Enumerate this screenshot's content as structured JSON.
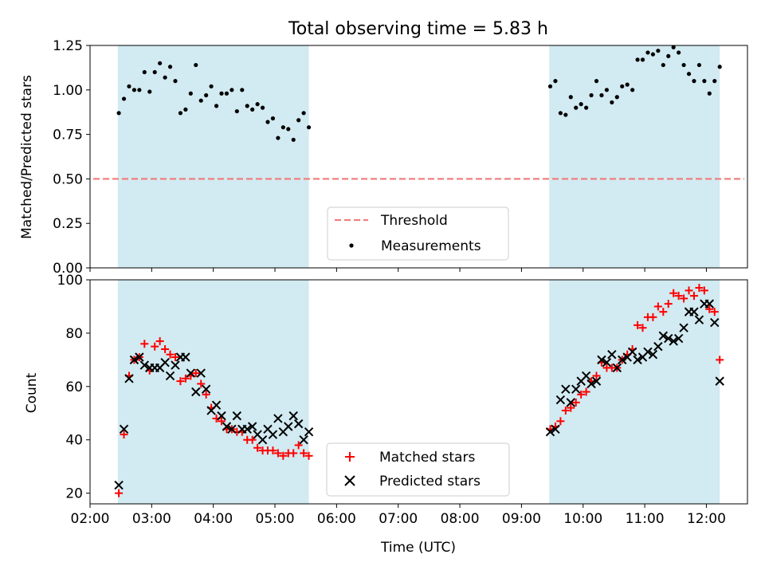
{
  "chart_data": [
    {
      "type": "scatter",
      "title": "Total observing time = 5.83 h",
      "xlabel": "",
      "ylabel": "Matched/Predicted stars",
      "xlim": [
        "02:00",
        "12:40"
      ],
      "ylim": [
        0,
        1.25
      ],
      "y_ticks": [
        "0.00",
        "0.25",
        "0.50",
        "0.75",
        "1.00",
        "1.25"
      ],
      "shaded_intervals": [
        [
          "02:27",
          "05:33"
        ],
        [
          "09:27",
          "12:13"
        ]
      ],
      "threshold": 0.5,
      "legend_position": "lower center",
      "legend": {
        "threshold_label": "Threshold",
        "measurements_label": "Measurements"
      },
      "series": [
        {
          "name": "Measurements",
          "marker": "dot",
          "color": "#000000",
          "points": [
            [
              "02:28",
              0.87
            ],
            [
              "02:33",
              0.95
            ],
            [
              "02:38",
              1.02
            ],
            [
              "02:43",
              1.0
            ],
            [
              "02:48",
              1.0
            ],
            [
              "02:53",
              1.1
            ],
            [
              "02:58",
              0.99
            ],
            [
              "03:03",
              1.1
            ],
            [
              "03:08",
              1.15
            ],
            [
              "03:13",
              1.07
            ],
            [
              "03:18",
              1.13
            ],
            [
              "03:23",
              1.05
            ],
            [
              "03:28",
              0.87
            ],
            [
              "03:33",
              0.89
            ],
            [
              "03:38",
              0.98
            ],
            [
              "03:43",
              1.14
            ],
            [
              "03:48",
              0.94
            ],
            [
              "03:53",
              0.97
            ],
            [
              "03:58",
              1.02
            ],
            [
              "04:03",
              0.91
            ],
            [
              "04:08",
              0.98
            ],
            [
              "04:13",
              0.98
            ],
            [
              "04:18",
              1.0
            ],
            [
              "04:23",
              0.88
            ],
            [
              "04:28",
              1.0
            ],
            [
              "04:33",
              0.91
            ],
            [
              "04:38",
              0.89
            ],
            [
              "04:43",
              0.92
            ],
            [
              "04:48",
              0.9
            ],
            [
              "04:53",
              0.82
            ],
            [
              "04:58",
              0.84
            ],
            [
              "05:03",
              0.73
            ],
            [
              "05:08",
              0.79
            ],
            [
              "05:13",
              0.78
            ],
            [
              "05:18",
              0.72
            ],
            [
              "05:23",
              0.83
            ],
            [
              "05:28",
              0.87
            ],
            [
              "05:33",
              0.79
            ],
            [
              "09:28",
              1.02
            ],
            [
              "09:33",
              1.05
            ],
            [
              "09:38",
              0.87
            ],
            [
              "09:43",
              0.86
            ],
            [
              "09:48",
              0.96
            ],
            [
              "09:53",
              0.9
            ],
            [
              "09:58",
              0.92
            ],
            [
              "10:03",
              0.9
            ],
            [
              "10:08",
              0.97
            ],
            [
              "10:13",
              1.05
            ],
            [
              "10:18",
              0.97
            ],
            [
              "10:23",
              1.0
            ],
            [
              "10:28",
              0.93
            ],
            [
              "10:33",
              0.96
            ],
            [
              "10:38",
              1.02
            ],
            [
              "10:43",
              1.03
            ],
            [
              "10:48",
              1.0
            ],
            [
              "10:53",
              1.17
            ],
            [
              "10:58",
              1.17
            ],
            [
              "11:03",
              1.21
            ],
            [
              "11:08",
              1.2
            ],
            [
              "11:13",
              1.22
            ],
            [
              "11:18",
              1.14
            ],
            [
              "11:23",
              1.19
            ],
            [
              "11:28",
              1.24
            ],
            [
              "11:33",
              1.21
            ],
            [
              "11:38",
              1.14
            ],
            [
              "11:43",
              1.09
            ],
            [
              "11:48",
              1.05
            ],
            [
              "11:53",
              1.14
            ],
            [
              "11:58",
              1.05
            ],
            [
              "12:03",
              0.98
            ],
            [
              "12:08",
              1.05
            ],
            [
              "12:13",
              1.13
            ]
          ]
        }
      ]
    },
    {
      "type": "scatter",
      "title": "",
      "xlabel": "Time (UTC)",
      "ylabel": "Count",
      "xlim": [
        "02:00",
        "12:40"
      ],
      "ylim": [
        16,
        100
      ],
      "x_ticks": [
        "02:00",
        "03:00",
        "04:00",
        "05:00",
        "06:00",
        "07:00",
        "08:00",
        "09:00",
        "10:00",
        "11:00",
        "12:00"
      ],
      "y_ticks": [
        "20",
        "40",
        "60",
        "80",
        "100"
      ],
      "shaded_intervals": [
        [
          "02:27",
          "05:33"
        ],
        [
          "09:27",
          "12:13"
        ]
      ],
      "legend_position": "lower center",
      "legend": {
        "matched_label": "Matched stars",
        "predicted_label": "Predicted stars"
      },
      "series": [
        {
          "name": "Matched stars",
          "marker": "plus",
          "color": "#ff0000",
          "points": [
            [
              "02:28",
              20
            ],
            [
              "02:33",
              42
            ],
            [
              "02:38",
              64
            ],
            [
              "02:43",
              70
            ],
            [
              "02:48",
              71
            ],
            [
              "02:53",
              76
            ],
            [
              "02:58",
              66
            ],
            [
              "03:03",
              75
            ],
            [
              "03:08",
              77
            ],
            [
              "03:13",
              74
            ],
            [
              "03:18",
              72
            ],
            [
              "03:23",
              71
            ],
            [
              "03:28",
              62
            ],
            [
              "03:33",
              63
            ],
            [
              "03:38",
              64
            ],
            [
              "03:43",
              65
            ],
            [
              "03:48",
              61
            ],
            [
              "03:53",
              57
            ],
            [
              "03:58",
              52
            ],
            [
              "04:03",
              48
            ],
            [
              "04:08",
              47
            ],
            [
              "04:13",
              44
            ],
            [
              "04:18",
              44
            ],
            [
              "04:23",
              43
            ],
            [
              "04:28",
              43
            ],
            [
              "04:33",
              40
            ],
            [
              "04:38",
              40
            ],
            [
              "04:43",
              37
            ],
            [
              "04:48",
              36
            ],
            [
              "04:53",
              36
            ],
            [
              "04:58",
              36
            ],
            [
              "05:03",
              35
            ],
            [
              "05:08",
              34
            ],
            [
              "05:13",
              35
            ],
            [
              "05:18",
              35
            ],
            [
              "05:23",
              38
            ],
            [
              "05:28",
              35
            ],
            [
              "05:33",
              34
            ],
            [
              "09:28",
              44
            ],
            [
              "09:33",
              45
            ],
            [
              "09:38",
              47
            ],
            [
              "09:43",
              51
            ],
            [
              "09:48",
              52
            ],
            [
              "09:53",
              54
            ],
            [
              "09:58",
              57
            ],
            [
              "10:03",
              58
            ],
            [
              "10:08",
              62
            ],
            [
              "10:13",
              64
            ],
            [
              "10:18",
              69
            ],
            [
              "10:23",
              67
            ],
            [
              "10:28",
              67
            ],
            [
              "10:33",
              67
            ],
            [
              "10:38",
              70
            ],
            [
              "10:43",
              72
            ],
            [
              "10:48",
              74
            ],
            [
              "10:53",
              83
            ],
            [
              "10:58",
              82
            ],
            [
              "11:03",
              86
            ],
            [
              "11:08",
              86
            ],
            [
              "11:13",
              90
            ],
            [
              "11:18",
              88
            ],
            [
              "11:23",
              91
            ],
            [
              "11:28",
              95
            ],
            [
              "11:33",
              94
            ],
            [
              "11:38",
              93
            ],
            [
              "11:43",
              96
            ],
            [
              "11:48",
              94
            ],
            [
              "11:53",
              97
            ],
            [
              "11:58",
              96
            ],
            [
              "12:03",
              89
            ],
            [
              "12:08",
              88
            ],
            [
              "12:13",
              70
            ]
          ]
        },
        {
          "name": "Predicted stars",
          "marker": "x",
          "color": "#000000",
          "points": [
            [
              "02:28",
              23
            ],
            [
              "02:33",
              44
            ],
            [
              "02:38",
              63
            ],
            [
              "02:43",
              70
            ],
            [
              "02:48",
              71
            ],
            [
              "02:53",
              68
            ],
            [
              "02:58",
              67
            ],
            [
              "03:03",
              67
            ],
            [
              "03:08",
              67
            ],
            [
              "03:13",
              69
            ],
            [
              "03:18",
              64
            ],
            [
              "03:23",
              68
            ],
            [
              "03:28",
              71
            ],
            [
              "03:33",
              71
            ],
            [
              "03:38",
              65
            ],
            [
              "03:43",
              58
            ],
            [
              "03:48",
              65
            ],
            [
              "03:53",
              59
            ],
            [
              "03:58",
              51
            ],
            [
              "04:03",
              53
            ],
            [
              "04:08",
              49
            ],
            [
              "04:13",
              45
            ],
            [
              "04:18",
              44
            ],
            [
              "04:23",
              49
            ],
            [
              "04:28",
              44
            ],
            [
              "04:33",
              44
            ],
            [
              "04:38",
              45
            ],
            [
              "04:43",
              42
            ],
            [
              "04:48",
              40
            ],
            [
              "04:53",
              44
            ],
            [
              "04:58",
              42
            ],
            [
              "05:03",
              48
            ],
            [
              "05:08",
              43
            ],
            [
              "05:13",
              45
            ],
            [
              "05:18",
              49
            ],
            [
              "05:23",
              46
            ],
            [
              "05:28",
              40
            ],
            [
              "05:33",
              43
            ],
            [
              "09:28",
              43
            ],
            [
              "09:33",
              44
            ],
            [
              "09:38",
              55
            ],
            [
              "09:43",
              59
            ],
            [
              "09:48",
              54
            ],
            [
              "09:53",
              59
            ],
            [
              "09:58",
              62
            ],
            [
              "10:03",
              64
            ],
            [
              "10:08",
              61
            ],
            [
              "10:13",
              62
            ],
            [
              "10:18",
              70
            ],
            [
              "10:23",
              69
            ],
            [
              "10:28",
              72
            ],
            [
              "10:33",
              67
            ],
            [
              "10:38",
              70
            ],
            [
              "10:43",
              71
            ],
            [
              "10:48",
              73
            ],
            [
              "10:53",
              70
            ],
            [
              "10:58",
              71
            ],
            [
              "11:03",
              73
            ],
            [
              "11:08",
              72
            ],
            [
              "11:13",
              75
            ],
            [
              "11:18",
              79
            ],
            [
              "11:23",
              78
            ],
            [
              "11:28",
              77
            ],
            [
              "11:33",
              78
            ],
            [
              "11:38",
              82
            ],
            [
              "11:43",
              88
            ],
            [
              "11:48",
              88
            ],
            [
              "11:53",
              85
            ],
            [
              "11:58",
              91
            ],
            [
              "12:03",
              91
            ],
            [
              "12:08",
              84
            ],
            [
              "12:13",
              62
            ]
          ]
        }
      ]
    }
  ],
  "colors": {
    "shade": "#add8e6",
    "threshold": "#f08080",
    "matched": "#ff0000",
    "predicted": "#000000",
    "measurements": "#000000"
  }
}
